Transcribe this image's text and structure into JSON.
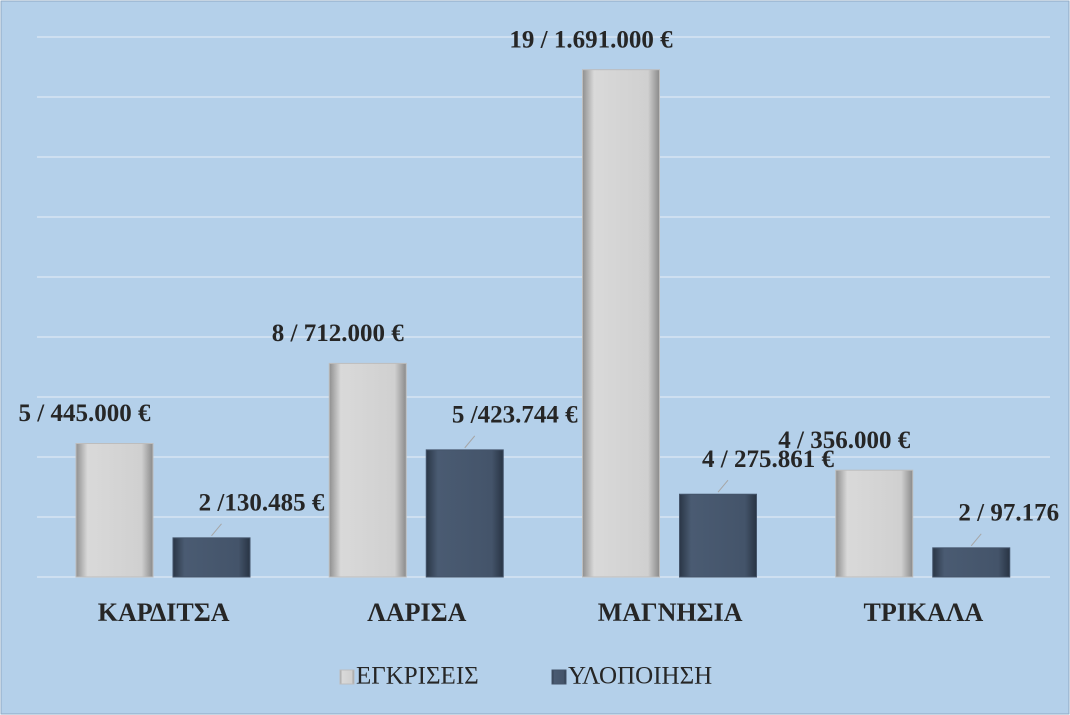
{
  "chart_data": {
    "type": "bar",
    "categories": [
      "ΚΑΡΔΙΤΣΑ",
      "ΛΑΡΙΣΑ",
      "ΜΑΓΝΗΣΙΑ",
      "ΤΡΙΚΑΛΑ"
    ],
    "series": [
      {
        "name": "ΕΓΚΡΙΣΕΙΣ",
        "color": "#bdbdbd",
        "values": [
          445000,
          712000,
          1691000,
          356000
        ],
        "value_labels": [
          "5 / 445.000 €",
          "8 / 712.000 €",
          "19 / 1.691.000 €",
          "4 / 356.000 €"
        ]
      },
      {
        "name": "ΥΛΟΠΟΙΗΣΗ",
        "color": "#44546a",
        "values": [
          130485,
          423744,
          275861,
          97176
        ],
        "value_labels": [
          "2 /130.485 €",
          "5 /423.744 €",
          "4 / 275.861 €",
          "2 / 97.176  €"
        ]
      }
    ],
    "ylim": [
      0,
      1800000
    ],
    "yticks": [
      0,
      200000,
      400000,
      600000,
      800000,
      1000000,
      1200000,
      1400000,
      1600000,
      1800000
    ],
    "grid": true,
    "legend": "bottom"
  }
}
